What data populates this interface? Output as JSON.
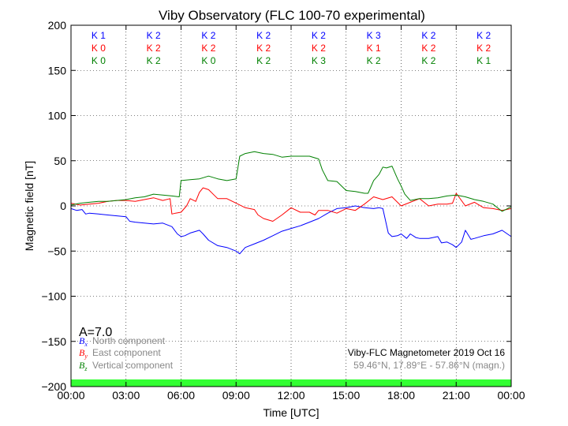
{
  "chart_data": {
    "type": "line",
    "title": "Viby Observatory (FLC 100-70 experimental)",
    "xlabel": "Time [UTC]",
    "ylabel": "Magnetic field [nT]",
    "xlim": [
      "00:00",
      "24:00"
    ],
    "ylim": [
      -200,
      200
    ],
    "x_tick_labels": [
      "00:00",
      "03:00",
      "06:00",
      "09:00",
      "12:00",
      "15:00",
      "18:00",
      "21:00",
      "00:00"
    ],
    "y_tick_labels": [
      "200",
      "150",
      "100",
      "50",
      "0",
      "−50",
      "−100",
      "−150",
      "−200"
    ],
    "y_ticks": [
      200,
      150,
      100,
      50,
      0,
      -50,
      -100,
      -150,
      -200
    ],
    "grid": true,
    "series": [
      {
        "name": "North component",
        "symbol": "B",
        "subscript": "x",
        "color": "#0000ff",
        "x_hours": [
          0,
          0.3,
          0.6,
          0.8,
          1,
          1.5,
          2,
          2.5,
          3,
          3.2,
          3.5,
          4,
          4.5,
          5,
          5.5,
          5.8,
          6,
          6.2,
          6.5,
          7,
          7.2,
          7.5,
          8,
          8.5,
          9,
          9.2,
          9.5,
          10,
          10.5,
          11,
          11.5,
          12,
          12.5,
          13,
          13.5,
          14,
          14.5,
          15,
          15.5,
          16,
          16.5,
          16.8,
          17,
          17.3,
          17.5,
          17.8,
          18,
          18.3,
          18.5,
          18.8,
          19,
          19.5,
          20,
          20.2,
          20.5,
          20.8,
          21,
          21.3,
          21.5,
          21.8,
          22,
          22.5,
          23,
          23.5,
          24
        ],
        "values": [
          -3,
          -5,
          -4,
          -9,
          -8,
          -9,
          -10,
          -11,
          -12,
          -17,
          -18,
          -19,
          -20,
          -19,
          -23,
          -31,
          -34,
          -33,
          -30,
          -27,
          -31,
          -38,
          -44,
          -46,
          -50,
          -53,
          -46,
          -42,
          -38,
          -33,
          -28,
          -25,
          -22,
          -18,
          -14,
          -8,
          -3,
          -2,
          0,
          -2,
          -3,
          -2,
          -3,
          -30,
          -34,
          -33,
          -31,
          -36,
          -31,
          -35,
          -36,
          -36,
          -34,
          -41,
          -40,
          -43,
          -46,
          -40,
          -27,
          -37,
          -36,
          -33,
          -31,
          -27,
          -34
        ]
      },
      {
        "name": "East component",
        "symbol": "B",
        "subscript": "y",
        "color": "#ff0000",
        "x_hours": [
          0,
          0.5,
          1,
          1.5,
          2,
          2.5,
          3,
          3.5,
          4,
          4.5,
          5,
          5.4,
          5.5,
          5.7,
          6,
          6.3,
          6.5,
          6.8,
          7,
          7.2,
          7.5,
          7.8,
          8,
          8.5,
          9,
          9.5,
          10,
          10.2,
          10.5,
          11,
          11.5,
          12,
          12.5,
          13,
          13.3,
          13.5,
          14,
          14.5,
          15,
          15.5,
          16,
          16.5,
          17,
          17.5,
          18,
          18.5,
          19,
          19.5,
          20,
          20.5,
          20.8,
          21,
          21.5,
          22,
          22.5,
          23,
          23.5,
          24
        ],
        "values": [
          3,
          1,
          2,
          3,
          5,
          6,
          6,
          5,
          7,
          9,
          6,
          8,
          -9,
          -8,
          -7,
          0,
          8,
          5,
          15,
          20,
          18,
          12,
          8,
          8,
          3,
          -2,
          -4,
          -10,
          -14,
          -17,
          -10,
          -2,
          -7,
          -7,
          -10,
          -5,
          -5,
          -8,
          -3,
          -5,
          2,
          10,
          7,
          10,
          0,
          4,
          8,
          0,
          2,
          2,
          3,
          14,
          0,
          4,
          -2,
          -3,
          -5,
          -3
        ]
      },
      {
        "name": "Vertical component",
        "symbol": "B",
        "subscript": "z",
        "color": "#008000",
        "x_hours": [
          0,
          0.5,
          1,
          1.5,
          2,
          2.5,
          3,
          3.5,
          4,
          4.5,
          5,
          5.5,
          5.9,
          6,
          6.5,
          7,
          7.5,
          8,
          8.5,
          9,
          9.2,
          9.5,
          10,
          10.5,
          11,
          11.5,
          12,
          12.5,
          13,
          13.5,
          13.7,
          14,
          14.5,
          15,
          15.5,
          16,
          16.2,
          16.5,
          16.8,
          17,
          17.2,
          17.5,
          17.8,
          18,
          18.2,
          18.5,
          19,
          19.5,
          20,
          20.5,
          21,
          21.5,
          22,
          22.5,
          23,
          23.5,
          24
        ],
        "values": [
          1,
          3,
          4,
          5,
          5,
          6,
          7,
          9,
          10,
          13,
          12,
          11,
          10,
          28,
          29,
          30,
          33,
          30,
          28,
          30,
          55,
          58,
          60,
          58,
          57,
          54,
          55,
          55,
          55,
          52,
          40,
          28,
          27,
          17,
          16,
          14,
          14,
          28,
          35,
          43,
          42,
          44,
          30,
          22,
          13,
          6,
          8,
          8,
          9,
          11,
          12,
          10,
          7,
          5,
          2,
          -6,
          -1
        ]
      }
    ],
    "k_indices": [
      {
        "north": "K 1",
        "east": "K 0",
        "vertical": "K 0"
      },
      {
        "north": "K 2",
        "east": "K 2",
        "vertical": "K 2"
      },
      {
        "north": "K 2",
        "east": "K 2",
        "vertical": "K 0"
      },
      {
        "north": "K 2",
        "east": "K 2",
        "vertical": "K 2"
      },
      {
        "north": "K 2",
        "east": "K 2",
        "vertical": "K 3"
      },
      {
        "north": "K 3",
        "east": "K 1",
        "vertical": "K 2"
      },
      {
        "north": "K 2",
        "east": "K 2",
        "vertical": "K 2"
      },
      {
        "north": "K 2",
        "east": "K 2",
        "vertical": "K 1"
      }
    ],
    "a_index": "A=7.0",
    "legend": [
      {
        "symbol": "B",
        "subscript": "x",
        "label": "North component",
        "color": "#0000ff"
      },
      {
        "symbol": "B",
        "subscript": "y",
        "label": "East component",
        "color": "#ff0000"
      },
      {
        "symbol": "B",
        "subscript": "z",
        "label": "Vertical component",
        "color": "#008000"
      }
    ],
    "legend_placement": "bottom-left",
    "station_info": {
      "line1": "Viby-FLC Magnetometer 2019 Oct 16",
      "line2": "59.46°N, 17.89°E - 57.86°N (magn.)"
    },
    "activity_bar_color": "#33ff33",
    "label_color": "#888888"
  }
}
